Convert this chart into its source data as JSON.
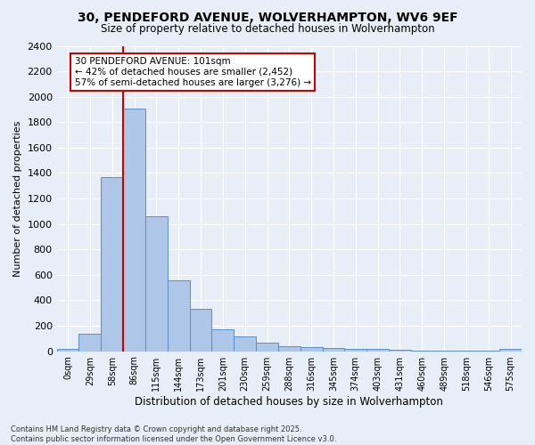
{
  "title1": "30, PENDEFORD AVENUE, WOLVERHAMPTON, WV6 9EF",
  "title2": "Size of property relative to detached houses in Wolverhampton",
  "xlabel": "Distribution of detached houses by size in Wolverhampton",
  "ylabel": "Number of detached properties",
  "footnote1": "Contains HM Land Registry data © Crown copyright and database right 2025.",
  "footnote2": "Contains public sector information licensed under the Open Government Licence v3.0.",
  "categories": [
    "0sqm",
    "29sqm",
    "58sqm",
    "86sqm",
    "115sqm",
    "144sqm",
    "173sqm",
    "201sqm",
    "230sqm",
    "259sqm",
    "288sqm",
    "316sqm",
    "345sqm",
    "374sqm",
    "403sqm",
    "431sqm",
    "460sqm",
    "489sqm",
    "518sqm",
    "546sqm",
    "575sqm"
  ],
  "values": [
    15,
    140,
    1370,
    1910,
    1060,
    560,
    335,
    170,
    115,
    65,
    40,
    30,
    25,
    20,
    15,
    10,
    5,
    5,
    5,
    5,
    15
  ],
  "bar_color": "#aec6e8",
  "bar_edge_color": "#5b8fc9",
  "background_color": "#e8eef7",
  "grid_color": "#ffffff",
  "vline_x": 2.5,
  "vline_color": "#cc0000",
  "annotation_text": "30 PENDEFORD AVENUE: 101sqm\n← 42% of detached houses are smaller (2,452)\n57% of semi-detached houses are larger (3,276) →",
  "annotation_box_color": "#ffffff",
  "annotation_box_edge": "#cc0000",
  "ylim": [
    0,
    2400
  ],
  "yticks": [
    0,
    200,
    400,
    600,
    800,
    1000,
    1200,
    1400,
    1600,
    1800,
    2000,
    2200,
    2400
  ]
}
